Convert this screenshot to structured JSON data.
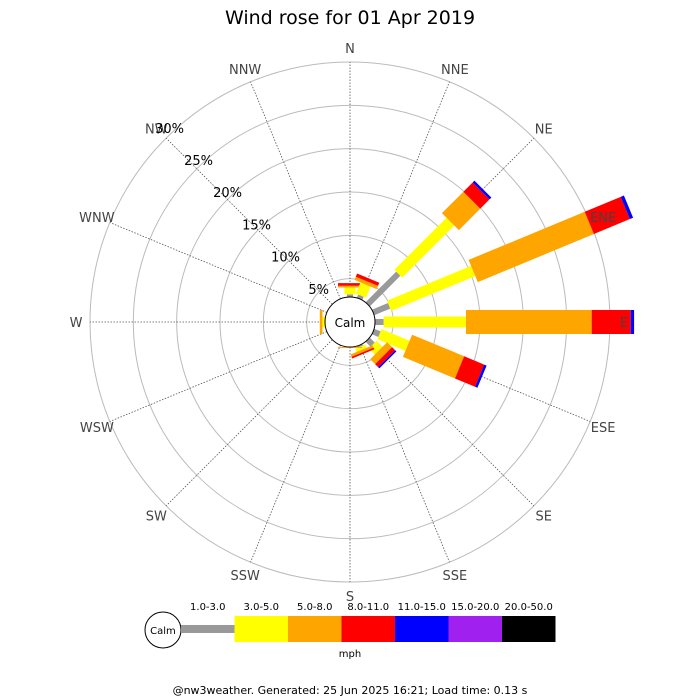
{
  "chart_data": {
    "type": "wind-rose",
    "title": "Wind rose for 01 Apr 2019",
    "directions": [
      "N",
      "NNE",
      "NE",
      "ENE",
      "E",
      "ESE",
      "SE",
      "SSE",
      "S",
      "SSW",
      "SW",
      "WSW",
      "W",
      "WNW",
      "NW",
      "NNW"
    ],
    "percent_ticks": [
      "5%",
      "10%",
      "15%",
      "20%",
      "25%",
      "30%"
    ],
    "radial_max_percent": 30,
    "calm_label": "Calm",
    "unit": "mph",
    "bins": [
      {
        "label": "1.0-3.0",
        "color": "#999999"
      },
      {
        "label": "3.0-5.0",
        "color": "#ffff00"
      },
      {
        "label": "5.0-8.0",
        "color": "#ffa500"
      },
      {
        "label": "8.0-11.0",
        "color": "#ff0000"
      },
      {
        "label": "11.0-15.0",
        "color": "#0000ff"
      },
      {
        "label": "15.0-20.0",
        "color": "#a020f0"
      },
      {
        "label": "20.0-50.0",
        "color": "#000000"
      }
    ],
    "values": {
      "N": [
        0.3,
        0.8,
        0.2,
        0.3,
        0,
        0,
        0
      ],
      "NNE": [
        0.4,
        1.4,
        0.4,
        0.4,
        0,
        0,
        0
      ],
      "NE": [
        5.0,
        8.5,
        3.5,
        1.5,
        0.3,
        0,
        0
      ],
      "ENE": [
        2.0,
        10.5,
        14.5,
        4.5,
        0.4,
        0,
        0
      ],
      "E": [
        1.0,
        9.5,
        14.5,
        4.5,
        0.4,
        0,
        0
      ],
      "ESE": [
        0.8,
        3.5,
        6.5,
        2.5,
        0.3,
        0,
        0
      ],
      "SE": [
        0.8,
        1.0,
        0.8,
        0.5,
        0.2,
        0,
        0
      ],
      "SSE": [
        0.2,
        0.4,
        0.3,
        0.2,
        0,
        0,
        0
      ],
      "S": [
        0,
        0,
        0.1,
        0,
        0,
        0,
        0
      ],
      "SSW": [
        0,
        0,
        0,
        0,
        0,
        0,
        0
      ],
      "SW": [
        0,
        0,
        0,
        0,
        0,
        0,
        0
      ],
      "WSW": [
        0,
        0,
        0,
        0,
        0,
        0,
        0
      ],
      "W": [
        0,
        0.3,
        0.3,
        0,
        0,
        0,
        0
      ],
      "WNW": [
        0,
        0,
        0,
        0,
        0,
        0,
        0
      ],
      "NW": [
        0,
        0,
        0,
        0,
        0,
        0,
        0
      ],
      "NNW": [
        0,
        0,
        0,
        0,
        0,
        0,
        0
      ]
    }
  },
  "footer": "@nw3weather. Generated: 25 Jun 2025 16:21; Load time: 0.13 s"
}
